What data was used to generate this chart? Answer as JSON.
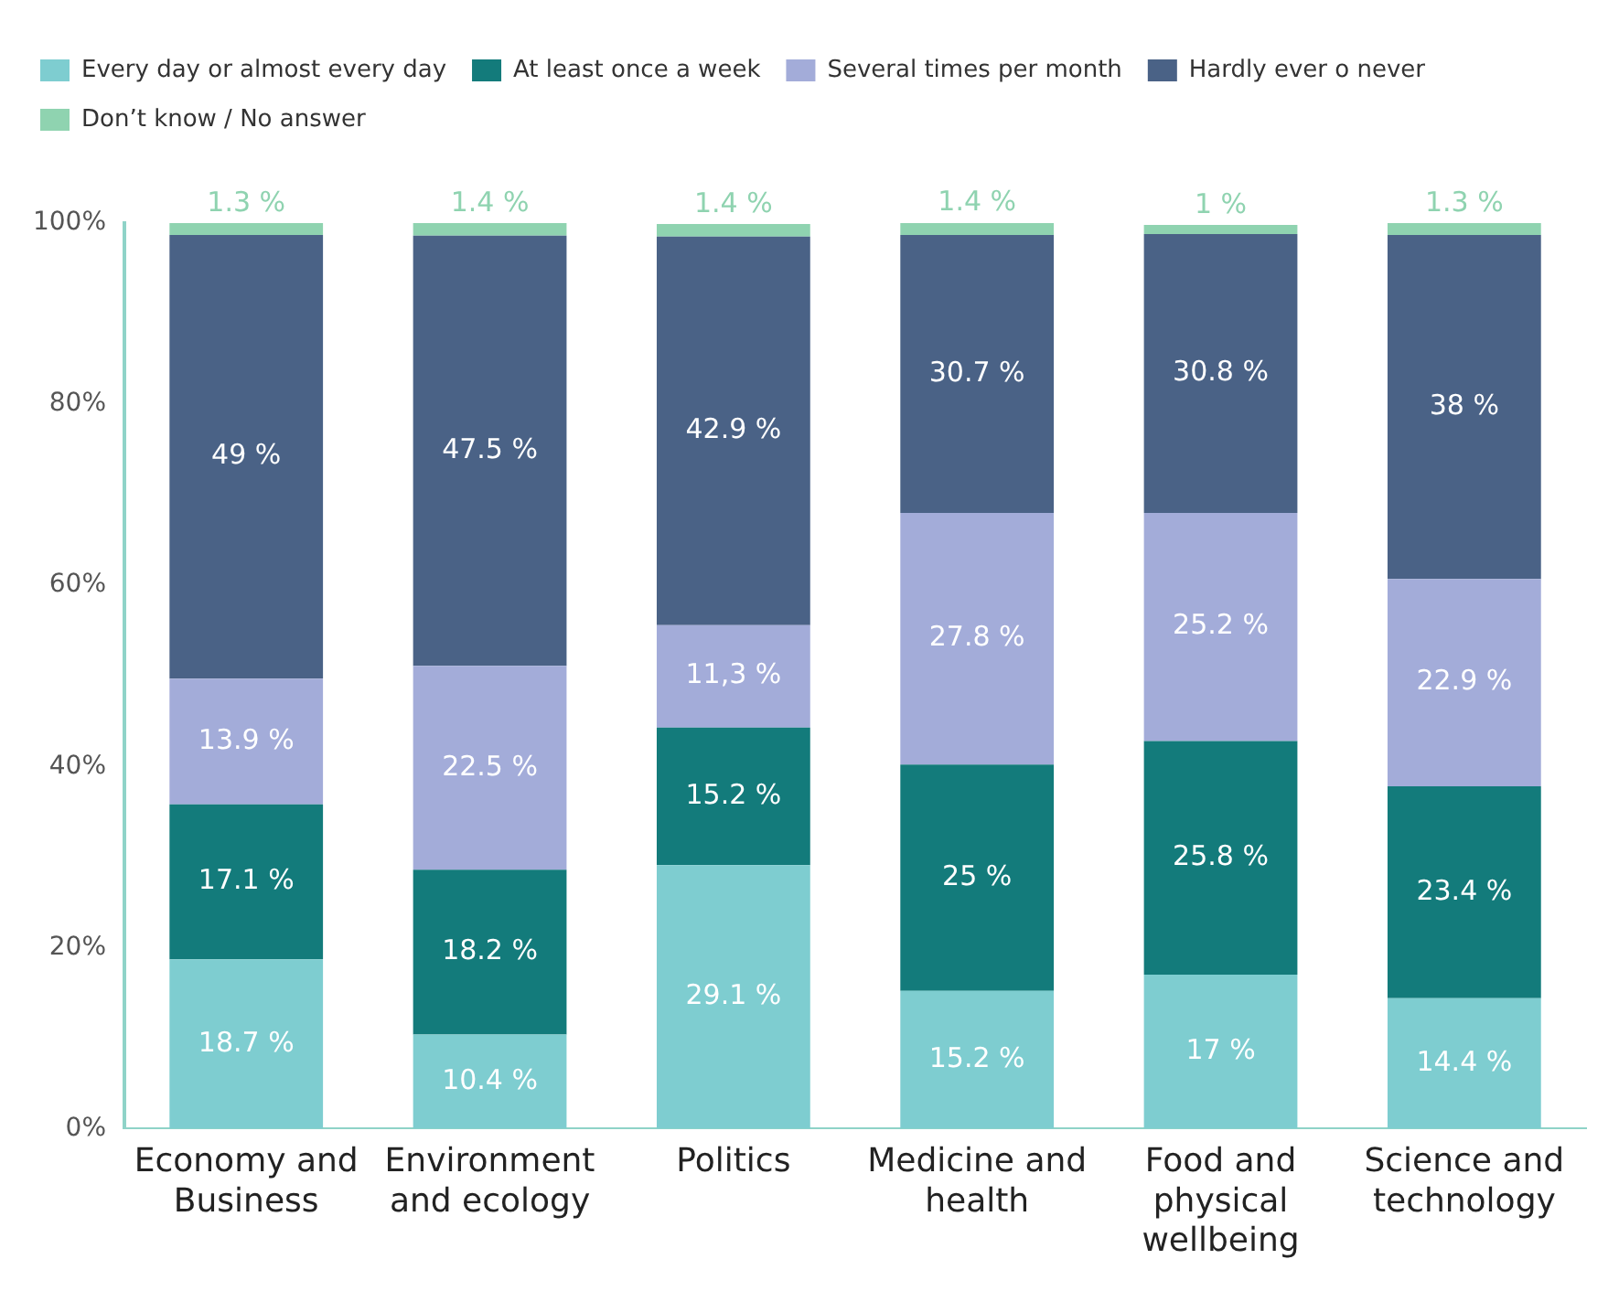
{
  "chart_data": {
    "type": "bar",
    "stacked": true,
    "categories": [
      "Economy and Business",
      "Environment and ecology",
      "Politics",
      "Medicine and health",
      "Food and physical wellbeing",
      "Science and technology"
    ],
    "series": [
      {
        "name": "Every day or almost every day",
        "color": "#7ecdd0",
        "values": [
          18.7,
          10.4,
          29.1,
          15.2,
          17,
          14.4
        ],
        "value_labels": [
          "18.7 %",
          "10.4 %",
          "29.1 %",
          "15.2 %",
          "17 %",
          "14.4 %"
        ]
      },
      {
        "name": "At least once a week",
        "color": "#137b7b",
        "values": [
          17.1,
          18.2,
          15.2,
          25,
          25.8,
          23.4
        ],
        "value_labels": [
          "17.1 %",
          "18.2 %",
          "15.2 %",
          "25 %",
          "25.8 %",
          "23.4 %"
        ]
      },
      {
        "name": "Several times per month",
        "color": "#a3acd9",
        "values": [
          13.9,
          22.5,
          11.3,
          27.8,
          25.2,
          22.9
        ],
        "value_labels": [
          "13.9 %",
          "22.5 %",
          "11,3 %",
          "27.8 %",
          "25.2 %",
          "22.9 %"
        ]
      },
      {
        "name": "Hardly ever o never",
        "color": "#4a6286",
        "values": [
          49,
          47.5,
          42.9,
          30.7,
          30.8,
          38
        ],
        "value_labels": [
          "49 %",
          "47.5 %",
          "42.9 %",
          "30.7 %",
          "30.8 %",
          "38 %"
        ]
      },
      {
        "name": "Don’t know / No answer",
        "color": "#8fd3b0",
        "values": [
          1.3,
          1.4,
          1.4,
          1.4,
          1,
          1.3
        ],
        "value_labels": [
          "1.3 %",
          "1.4 %",
          "1.4 %",
          "1.4 %",
          "1 %",
          "1.3 %"
        ]
      }
    ],
    "ylim": [
      0,
      100
    ],
    "yticks": [
      {
        "value": 0,
        "label": "0%"
      },
      {
        "value": 20,
        "label": "20%"
      },
      {
        "value": 40,
        "label": "40%"
      },
      {
        "value": 60,
        "label": "60%"
      },
      {
        "value": 80,
        "label": "80%"
      },
      {
        "value": 100,
        "label": "100%"
      }
    ],
    "grid": false,
    "legend": "top left"
  }
}
